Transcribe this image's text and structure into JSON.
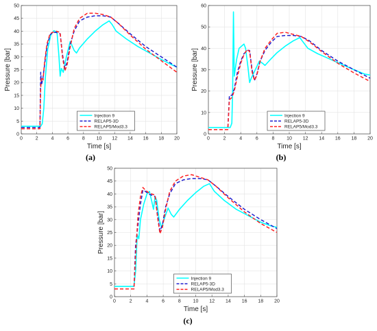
{
  "colors": {
    "injection": "#00ffff",
    "relap5_3d": "#1f1fcf",
    "relap5_mod33": "#ff2020",
    "grid": "#e3e3e3",
    "axis": "#404040"
  },
  "chart_data": [
    {
      "type": "line",
      "panel_label": "(a)",
      "xlabel": "Time [s]",
      "ylabel": "Pressure [bar]",
      "xlim": [
        0,
        20
      ],
      "ylim": [
        0,
        50
      ],
      "xticks": [
        0,
        2,
        4,
        6,
        8,
        10,
        12,
        14,
        16,
        18,
        20
      ],
      "yticks": [
        0,
        5,
        10,
        15,
        20,
        25,
        30,
        35,
        40,
        45,
        50
      ],
      "grid": true,
      "legend_position": "bottom-center",
      "series": [
        {
          "name": "Injection 9",
          "style": "solid",
          "x": [
            0,
            2.5,
            2.7,
            2.9,
            3.1,
            3.4,
            3.8,
            4.2,
            4.6,
            4.85,
            5.0,
            5.15,
            5.4,
            5.8,
            6.3,
            6.8,
            7.1,
            7.5,
            8.5,
            9.5,
            10.5,
            11.3,
            11.7,
            12.2,
            13.5,
            15,
            16.5,
            18,
            19.3,
            20
          ],
          "y": [
            3,
            3,
            4,
            10,
            22,
            33,
            38.5,
            40.2,
            39.5,
            30,
            22.5,
            25.5,
            24,
            30,
            36,
            32.5,
            31.5,
            33.5,
            37,
            40,
            42.5,
            44,
            42.5,
            40,
            37,
            34,
            31.5,
            29,
            27,
            26
          ]
        },
        {
          "name": "RELAP5-3D",
          "style": "dashed",
          "x": [
            0,
            2.4,
            2.5,
            2.6,
            2.8,
            3.0,
            3.3,
            3.7,
            4.0,
            4.5,
            5.0,
            5.3,
            5.6,
            5.9,
            6.3,
            6.8,
            7.5,
            8.5,
            9.5,
            10.5,
            11.5,
            12.5,
            14,
            16,
            18,
            20
          ],
          "y": [
            2.5,
            2.5,
            24,
            19,
            22,
            27,
            34,
            38.5,
            39.5,
            39.5,
            39,
            31,
            25.5,
            28,
            35,
            40,
            44,
            45.5,
            46,
            46,
            45.5,
            43,
            39,
            34,
            30,
            26
          ]
        },
        {
          "name": "RELAP5/Mod3.3",
          "style": "dashed",
          "x": [
            0,
            2.4,
            2.5,
            2.6,
            2.8,
            3.0,
            3.3,
            3.7,
            4.0,
            4.5,
            5.0,
            5.3,
            5.6,
            5.9,
            6.3,
            6.8,
            7.5,
            8.5,
            9.5,
            10.5,
            11.5,
            12.5,
            14,
            16,
            18,
            20
          ],
          "y": [
            2,
            2,
            18,
            22,
            21,
            28,
            35,
            39,
            39.5,
            40,
            39.5,
            30,
            24.5,
            27,
            34,
            41,
            45,
            47,
            47,
            46.5,
            45.5,
            43,
            38.5,
            33,
            28.5,
            24
          ]
        }
      ]
    },
    {
      "type": "line",
      "panel_label": "(b)",
      "xlabel": "Time [s]",
      "ylabel": "Pressure [bar]",
      "xlim": [
        0,
        20
      ],
      "ylim": [
        0,
        60
      ],
      "xticks": [
        0,
        2,
        4,
        6,
        8,
        10,
        12,
        14,
        16,
        18,
        20
      ],
      "yticks": [
        0,
        10,
        20,
        30,
        40,
        50,
        60
      ],
      "grid": true,
      "legend_position": "bottom-center",
      "series": [
        {
          "name": "Injection 9",
          "style": "solid",
          "x": [
            0,
            2.7,
            2.9,
            3.0,
            3.1,
            3.2,
            3.5,
            3.8,
            4.1,
            4.4,
            4.6,
            4.9,
            5.1,
            5.3,
            5.8,
            6.3,
            6.7,
            7.0,
            7.6,
            8.5,
            9.5,
            10.5,
            11.3,
            11.7,
            12.3,
            13.5,
            15,
            16.5,
            18,
            19.3,
            20
          ],
          "y": [
            3,
            3,
            5,
            20,
            57,
            27,
            35,
            40,
            41,
            42,
            40,
            31,
            24,
            26,
            30,
            34,
            33,
            32,
            34.5,
            38,
            41,
            43.5,
            45,
            43,
            40,
            37.5,
            35,
            32.5,
            30,
            28,
            27.5
          ]
        },
        {
          "name": "RELAP5-3D",
          "style": "dashed",
          "x": [
            0,
            2.4,
            2.6,
            2.9,
            3.2,
            3.6,
            4.0,
            4.4,
            4.8,
            5.1,
            5.4,
            5.7,
            6.0,
            6.4,
            7.0,
            7.8,
            8.5,
            9.5,
            10.5,
            11.5,
            12.5,
            14,
            16,
            18,
            20
          ],
          "y": [
            2,
            2,
            18,
            18,
            21,
            29,
            34,
            37.5,
            39,
            39,
            30,
            25,
            28,
            34,
            39,
            43,
            45.5,
            46,
            46,
            45.5,
            43.5,
            39,
            34,
            30,
            26
          ]
        },
        {
          "name": "RELAP5/Mod3.3",
          "style": "dashed",
          "x": [
            0,
            2.4,
            2.6,
            2.9,
            3.2,
            3.6,
            4.0,
            4.4,
            4.8,
            5.1,
            5.4,
            5.7,
            6.0,
            6.4,
            7.0,
            7.8,
            8.5,
            9.5,
            10.5,
            11.5,
            12.5,
            14,
            16,
            18,
            20
          ],
          "y": [
            2,
            2,
            16,
            17,
            20,
            27,
            33,
            37,
            39.5,
            38.5,
            29,
            25,
            27.5,
            34,
            40,
            44,
            47,
            47.5,
            46.5,
            45.5,
            43,
            38.5,
            33,
            28.5,
            24.5
          ]
        }
      ]
    },
    {
      "type": "line",
      "panel_label": "(c)",
      "xlabel": "Time [s]",
      "ylabel": "Pressure [bar]",
      "xlim": [
        0,
        20
      ],
      "ylim": [
        0,
        50
      ],
      "xticks": [
        0,
        2,
        4,
        6,
        8,
        10,
        12,
        14,
        16,
        18,
        20
      ],
      "yticks": [
        0,
        5,
        10,
        15,
        20,
        25,
        30,
        35,
        40,
        45,
        50
      ],
      "grid": true,
      "legend_position": "bottom-center",
      "series": [
        {
          "name": "Injection 9",
          "style": "solid",
          "x": [
            0,
            2.4,
            2.6,
            2.8,
            3.0,
            3.2,
            3.6,
            4.0,
            4.3,
            4.6,
            4.8,
            5.0,
            5.2,
            5.5,
            5.8,
            6.2,
            6.6,
            7.0,
            7.3,
            8,
            9,
            10,
            11,
            11.7,
            12.3,
            13.5,
            15,
            16.5,
            18,
            19.3,
            20
          ],
          "y": [
            4,
            4,
            10,
            24,
            22.5,
            30,
            36,
            40,
            41,
            37,
            34,
            39,
            37.5,
            30,
            27,
            31,
            34.5,
            32,
            31,
            34,
            37.5,
            40.5,
            43,
            44,
            41,
            37.5,
            34,
            31.5,
            29,
            27.5,
            27
          ]
        },
        {
          "name": "RELAP5-3D",
          "style": "dashed",
          "x": [
            0,
            2.4,
            2.6,
            2.9,
            3.2,
            3.5,
            3.8,
            4.2,
            4.6,
            5.0,
            5.3,
            5.6,
            5.9,
            6.3,
            6.8,
            7.5,
            8.5,
            9.5,
            10.5,
            11.5,
            12.5,
            14,
            16,
            18,
            20
          ],
          "y": [
            3,
            3,
            20,
            28,
            36,
            41.5,
            41,
            40,
            39.5,
            39,
            32,
            25.5,
            28,
            35,
            40,
            44,
            45.5,
            46,
            46,
            45.5,
            43,
            39,
            34,
            30,
            26.5
          ]
        },
        {
          "name": "RELAP5/Mod3.3",
          "style": "dashed",
          "x": [
            0,
            2.4,
            2.6,
            2.9,
            3.2,
            3.5,
            3.8,
            4.2,
            4.6,
            5.0,
            5.3,
            5.6,
            5.9,
            6.3,
            6.8,
            7.5,
            8.5,
            9.5,
            10.5,
            11.5,
            12.5,
            14,
            16,
            18,
            20
          ],
          "y": [
            3,
            3,
            16,
            32,
            39,
            42.5,
            41.5,
            40.5,
            40,
            39.5,
            31,
            24.5,
            27,
            34,
            41,
            45,
            47,
            47.5,
            46.5,
            45.5,
            43,
            38.5,
            33,
            28.5,
            25
          ]
        }
      ]
    }
  ]
}
